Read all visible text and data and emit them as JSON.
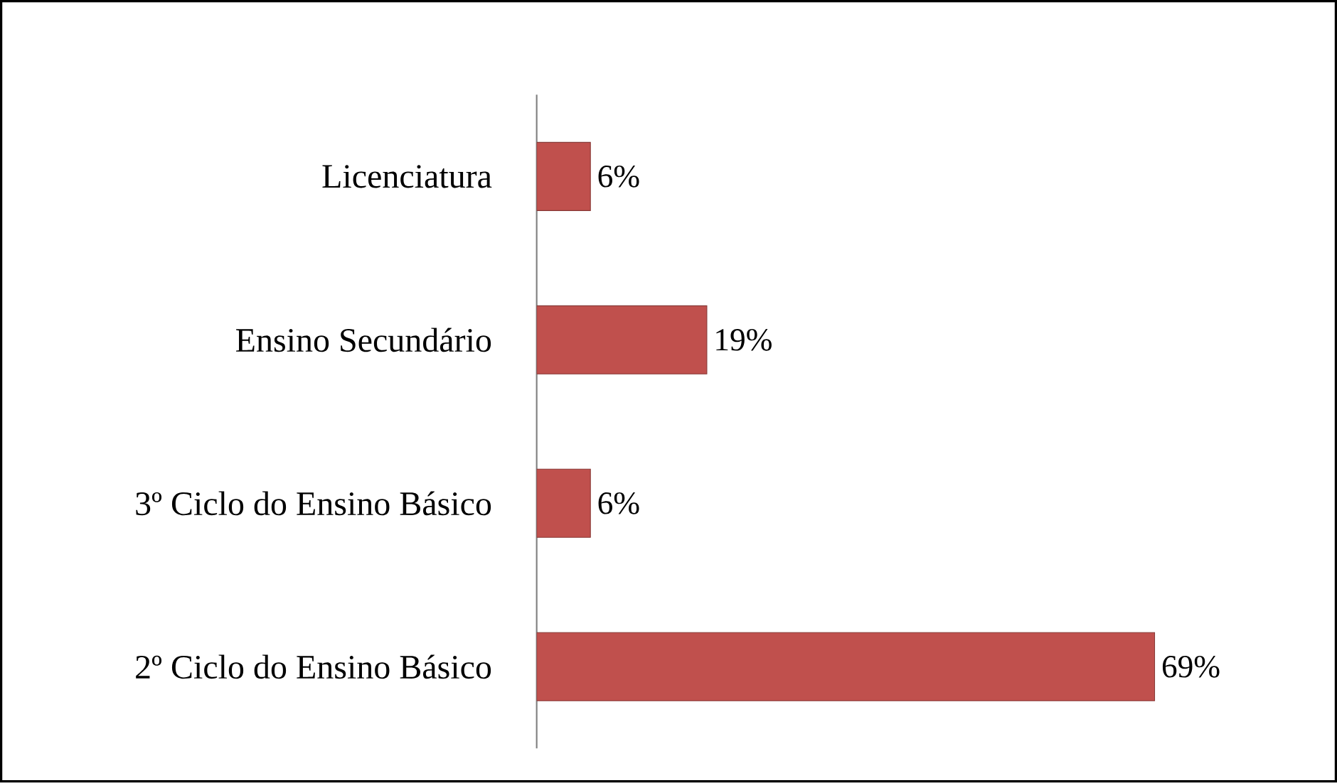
{
  "chart_data": {
    "type": "bar",
    "orientation": "horizontal",
    "categories": [
      "Licenciatura",
      "Ensino Secundário",
      "3º Ciclo do Ensino Básico",
      "2º Ciclo do Ensino Básico"
    ],
    "values": [
      6,
      19,
      6,
      69
    ],
    "value_labels": [
      "6%",
      "19%",
      "6%",
      "69%"
    ],
    "color": "#c0504d"
  }
}
